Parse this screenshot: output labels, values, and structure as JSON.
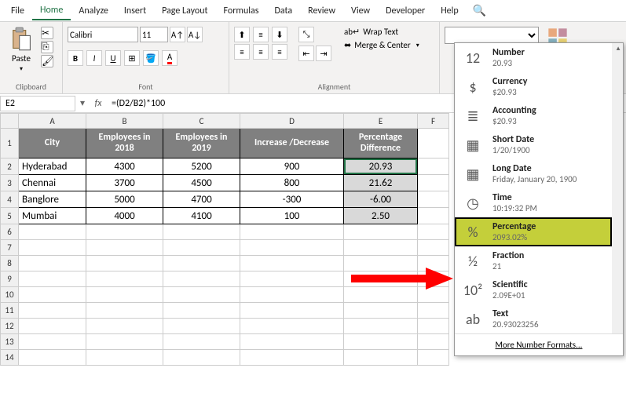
{
  "tabs": [
    "File",
    "Home",
    "Analyze",
    "Insert",
    "Page Layout",
    "Formulas",
    "Data",
    "Review",
    "View",
    "Developer",
    "Help"
  ],
  "clipboard": {
    "paste": "Paste",
    "label": "Clipboard"
  },
  "font": {
    "name": "Calibri",
    "size": "11",
    "label": "Font"
  },
  "align": {
    "wrap": "Wrap Text",
    "merge": "Merge & Center",
    "label": "Alignment"
  },
  "format_dropdown_empty": "",
  "namebox": "E2",
  "formula": "=(D2/B2)*100",
  "cols": [
    "A",
    "B",
    "C",
    "D",
    "E",
    "F"
  ],
  "col_widths": {
    "A": 86,
    "B": 98,
    "C": 98,
    "D": 132,
    "E": 94,
    "F": 40
  },
  "headers": {
    "A": "City",
    "B": "Employees in 2018",
    "C": "Employees in 2019",
    "D": "Increase /Decrease",
    "E": "Percentage Difference"
  },
  "rows": [
    {
      "n": "2",
      "A": "Hyderabad",
      "B": "4300",
      "C": "5200",
      "D": "900",
      "E": "20.93"
    },
    {
      "n": "3",
      "A": "Chennai",
      "B": "3700",
      "C": "4500",
      "D": "800",
      "E": "21.62"
    },
    {
      "n": "4",
      "A": "Banglore",
      "B": "5000",
      "C": "4700",
      "D": "-300",
      "E": "-6.00"
    },
    {
      "n": "5",
      "A": "Mumbai",
      "B": "4000",
      "C": "4100",
      "D": "100",
      "E": "2.50"
    }
  ],
  "empty_rows": [
    "6",
    "7",
    "8",
    "9",
    "10",
    "11",
    "12",
    "13",
    "14"
  ],
  "dd": [
    {
      "ico": "12",
      "t": "Number",
      "s": "20.93"
    },
    {
      "ico": "$",
      "t": "Currency",
      "s": "$20.93"
    },
    {
      "ico": "≣",
      "t": "Accounting",
      "s": "$20.93"
    },
    {
      "ico": "▦",
      "t": "Short Date",
      "s": "1/20/1900"
    },
    {
      "ico": "▦",
      "t": "Long Date",
      "s": "Friday, January 20, 1900"
    },
    {
      "ico": "◷",
      "t": "Time",
      "s": "10:19:32 PM"
    },
    {
      "ico": "%",
      "t": "Percentage",
      "s": "2093.02%"
    },
    {
      "ico": "½",
      "t": "Fraction",
      "s": "21"
    },
    {
      "ico": "10²",
      "t": "Scientific",
      "s": "2.09E+01"
    },
    {
      "ico": "ab",
      "t": "Text",
      "s": "20.93023256"
    }
  ],
  "dd_more": "More Number Formats...",
  "colors": {
    "header_bg": "#808080",
    "sel_bg": "#d9d9d9",
    "highlight": "#c4cf3a",
    "excel_green": "#217346",
    "arrow": "#ff0000"
  }
}
